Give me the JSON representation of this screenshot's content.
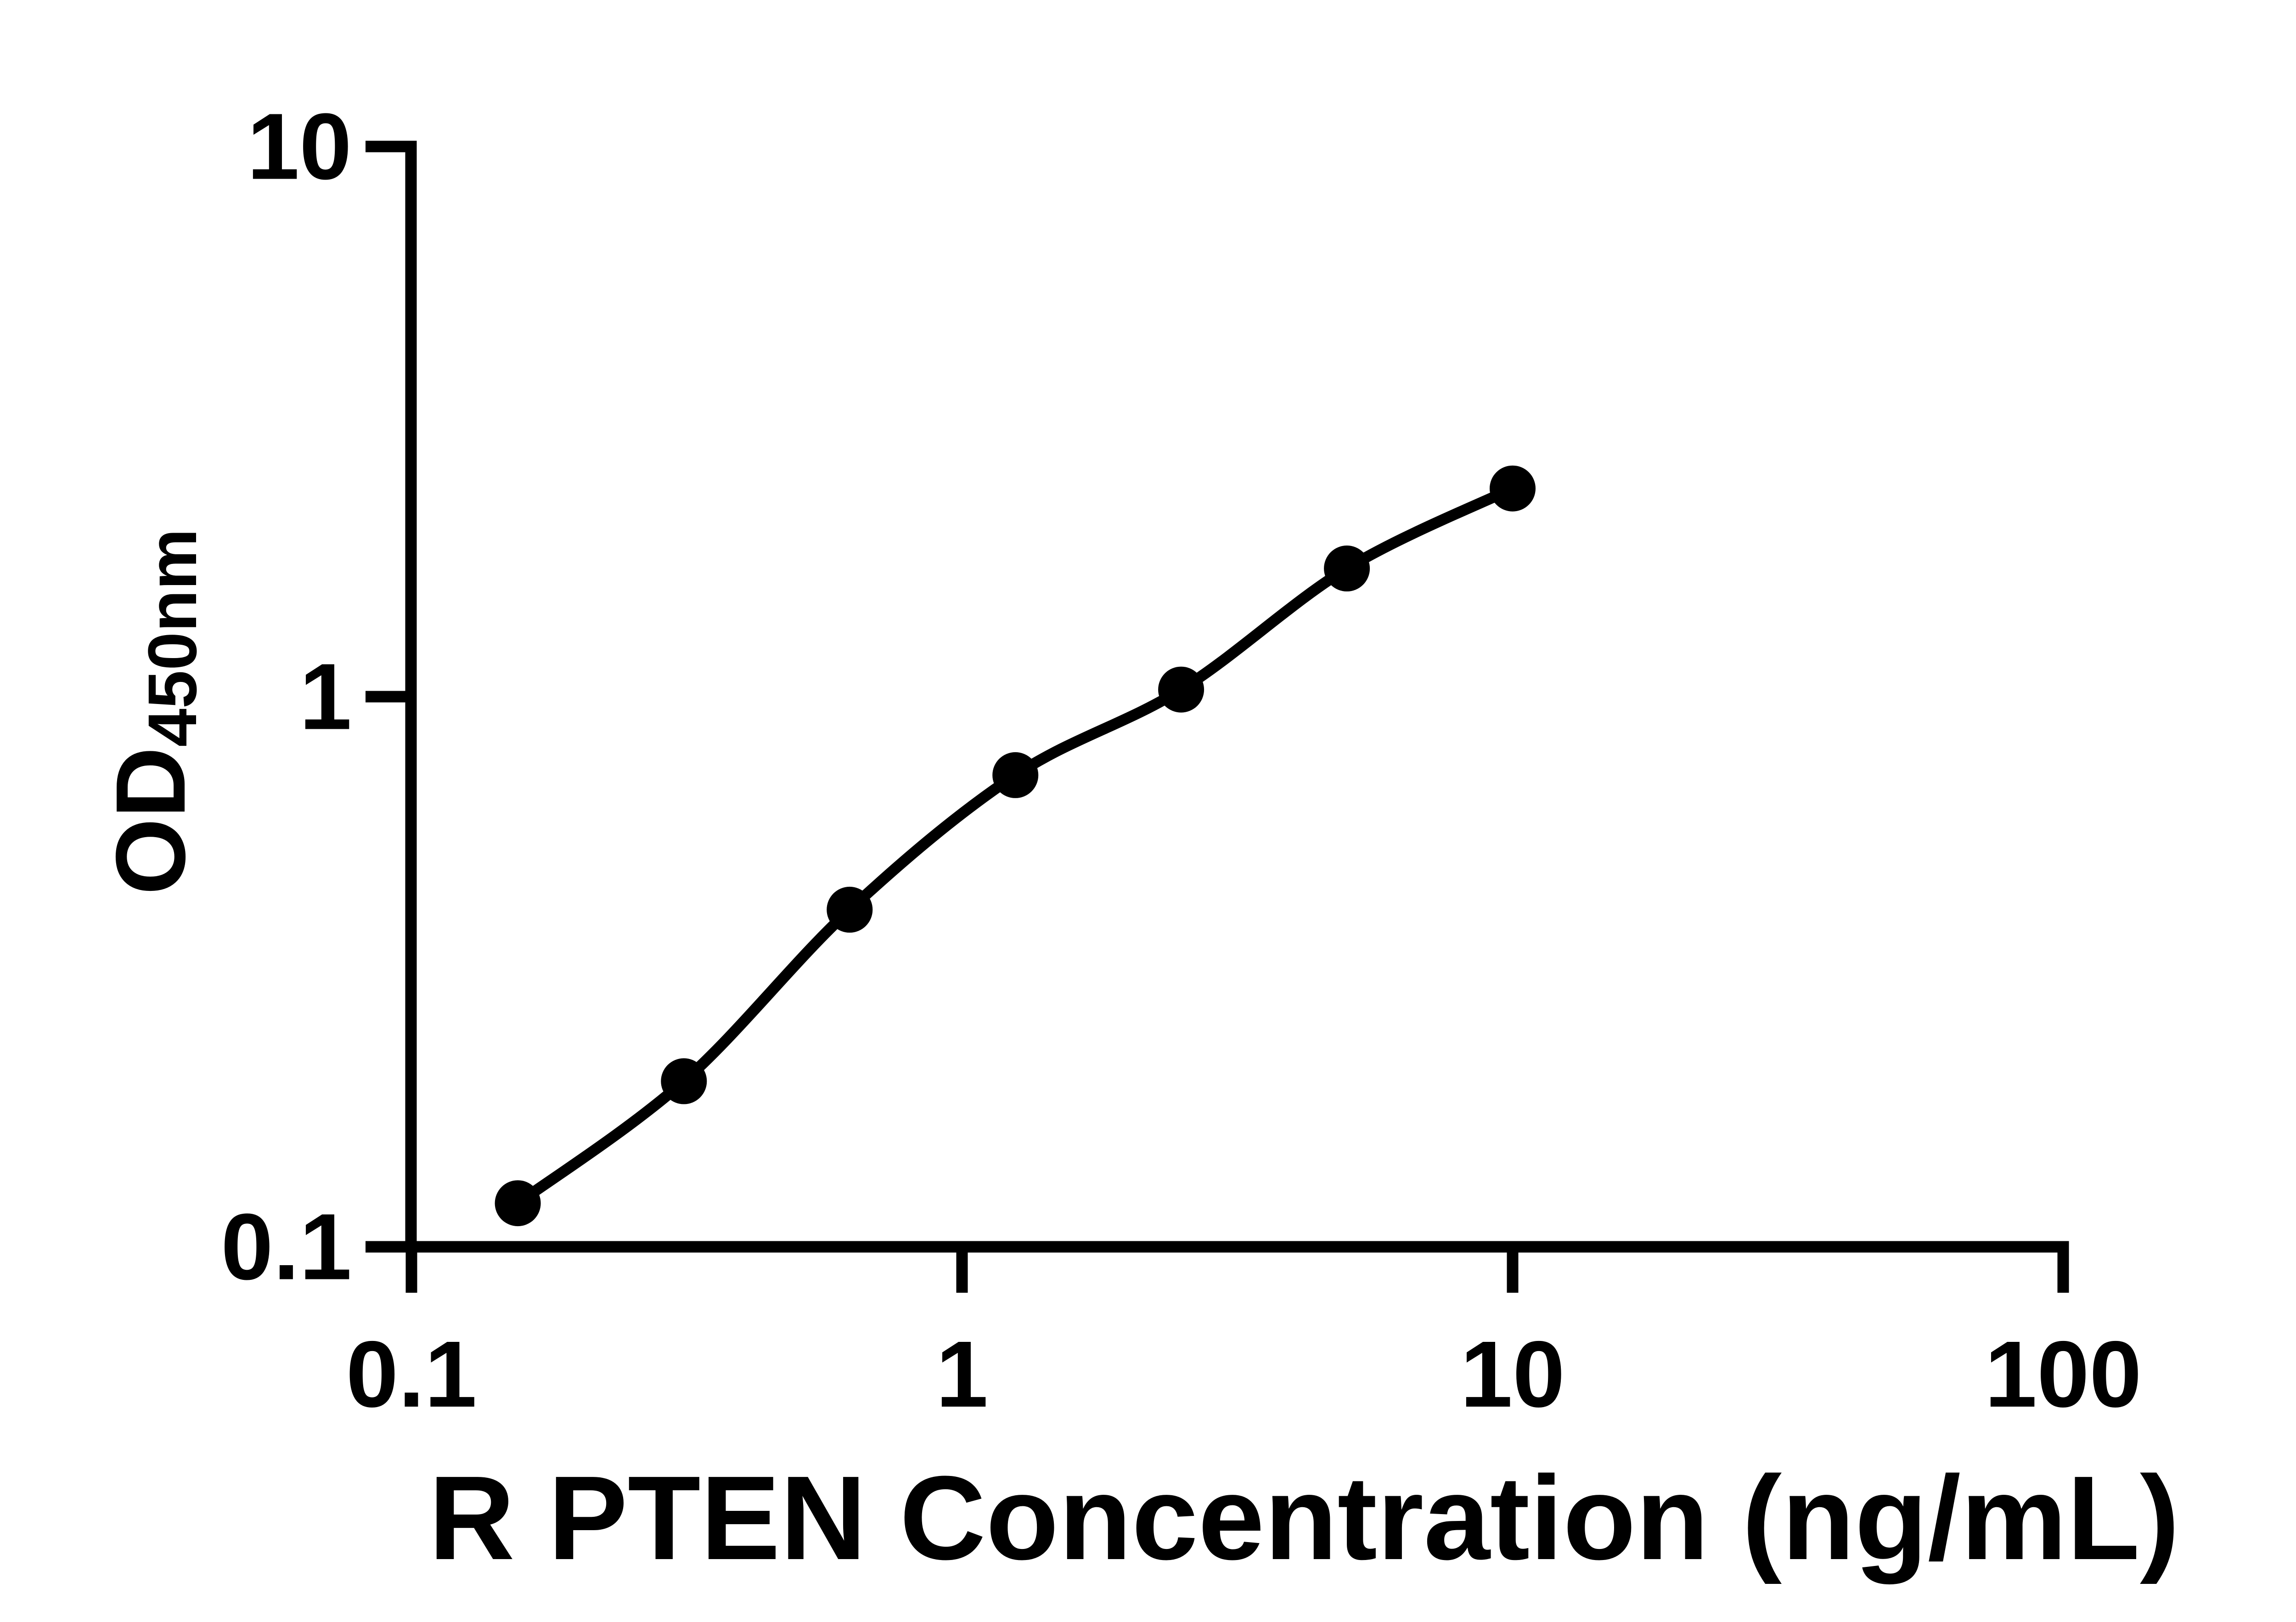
{
  "figure": {
    "background_color": "#ffffff",
    "foreground_color": "#000000"
  },
  "chart_data": {
    "type": "scatter",
    "title": "",
    "xlabel": "R PTEN Concentration (ng/mL)",
    "ylabel": "OD450nm",
    "ylabel_base": "OD",
    "ylabel_subscript": "450nm",
    "xscale": "log",
    "yscale": "log",
    "xlim": [
      0.1,
      100
    ],
    "ylim": [
      0.1,
      10
    ],
    "grid": false,
    "legend": "none",
    "x_ticks": [
      {
        "label": "0.1",
        "value": 0.1
      },
      {
        "label": "1",
        "value": 1
      },
      {
        "label": "10",
        "value": 10
      },
      {
        "label": "100",
        "value": 100
      }
    ],
    "y_ticks": [
      {
        "label": "0.1",
        "value": 0.1
      },
      {
        "label": "1",
        "value": 1
      },
      {
        "label": "10",
        "value": 10
      }
    ],
    "series": [
      {
        "marker": "filled-circle",
        "marker_color": "#000000",
        "line_color": "#000000",
        "line_style": "smooth-fit-curve",
        "x": [
          0.156,
          0.3125,
          0.625,
          1.25,
          2.5,
          5,
          10
        ],
        "y": [
          0.12,
          0.2,
          0.41,
          0.72,
          1.03,
          1.71,
          2.39
        ]
      }
    ]
  }
}
